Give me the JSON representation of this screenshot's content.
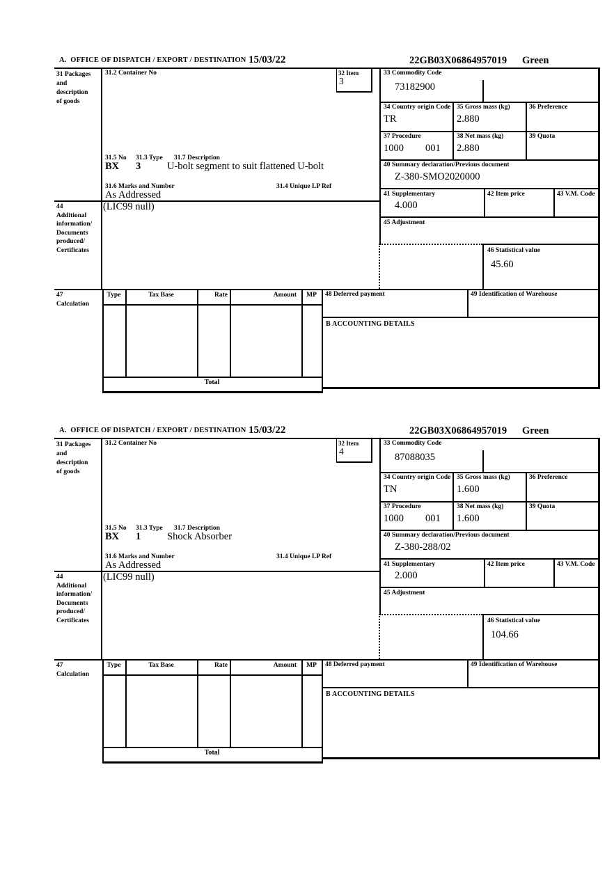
{
  "page": {
    "background": "#ffffff",
    "ink": "#000000"
  },
  "labels": {
    "office": "A.  OFFICE OF DISPATCH / EXPORT / DESTINATION",
    "box31": [
      "31 Packages",
      "and",
      "description",
      "of goods"
    ],
    "box31_2": "31.2 Container No",
    "box31_5": "31.5 No",
    "box31_3": "31.3 Type",
    "box31_7": "31.7 Description",
    "box31_6": "31.6 Marks and Number",
    "box31_4": "31.4 Unique LP Ref",
    "box32": "32 Item",
    "box33": "33 Commodity Code",
    "box34": "34 Country origin Code",
    "box35": "35 Gross mass (kg)",
    "box36": "36 Preference",
    "box37": "37 Procedure",
    "box38": "38 Net mass (kg)",
    "box39": "39 Quota",
    "box40": "40 Summary declaration/Previous document",
    "box41": "41 Supplementary",
    "box42": "42 Item price",
    "box43": "43 V.M. Code",
    "box44": [
      "44",
      "Additional",
      "information/",
      "Documents",
      "produced/",
      "Certificates"
    ],
    "box45": "45 Adjustment",
    "box46": "46 Statistical value",
    "box47": [
      "47",
      "Calculation"
    ],
    "box48": "48 Deferred payment",
    "box49": "49 Identification of Warehouse",
    "accounting": "B ACCOUNTING DETAILS",
    "calc_cols": [
      "Type",
      "Tax Base",
      "Rate",
      "Amount",
      "MP"
    ],
    "total": "Total"
  },
  "items": [
    {
      "date": "15/03/22",
      "reference": "22GB03X06864957019",
      "routing": "Green",
      "item_no": "3",
      "commodity_code": "73182900",
      "country_origin": "TR",
      "gross_mass": "2.880",
      "procedure": "1000",
      "procedure2": "001",
      "net_mass": "2.880",
      "previous_document": "Z-380-SMO2020000",
      "supplementary": "4.000",
      "statistical_value": "45.60",
      "package_no": "BX",
      "package_type": "3",
      "description": "U-bolt segment to suit flattened U-bolt",
      "marks": "As Addressed",
      "additional_info": "(LIC99 null)"
    },
    {
      "date": "15/03/22",
      "reference": "22GB03X06864957019",
      "routing": "Green",
      "item_no": "4",
      "commodity_code": "87088035",
      "country_origin": "TN",
      "gross_mass": "1.600",
      "procedure": "1000",
      "procedure2": "001",
      "net_mass": "1.600",
      "previous_document": "Z-380-288/02",
      "supplementary": "2.000",
      "statistical_value": "104.66",
      "package_no": "BX",
      "package_type": "1",
      "description": "Shock Absorber",
      "marks": "As Addressed",
      "additional_info": "(LIC99 null)"
    }
  ]
}
